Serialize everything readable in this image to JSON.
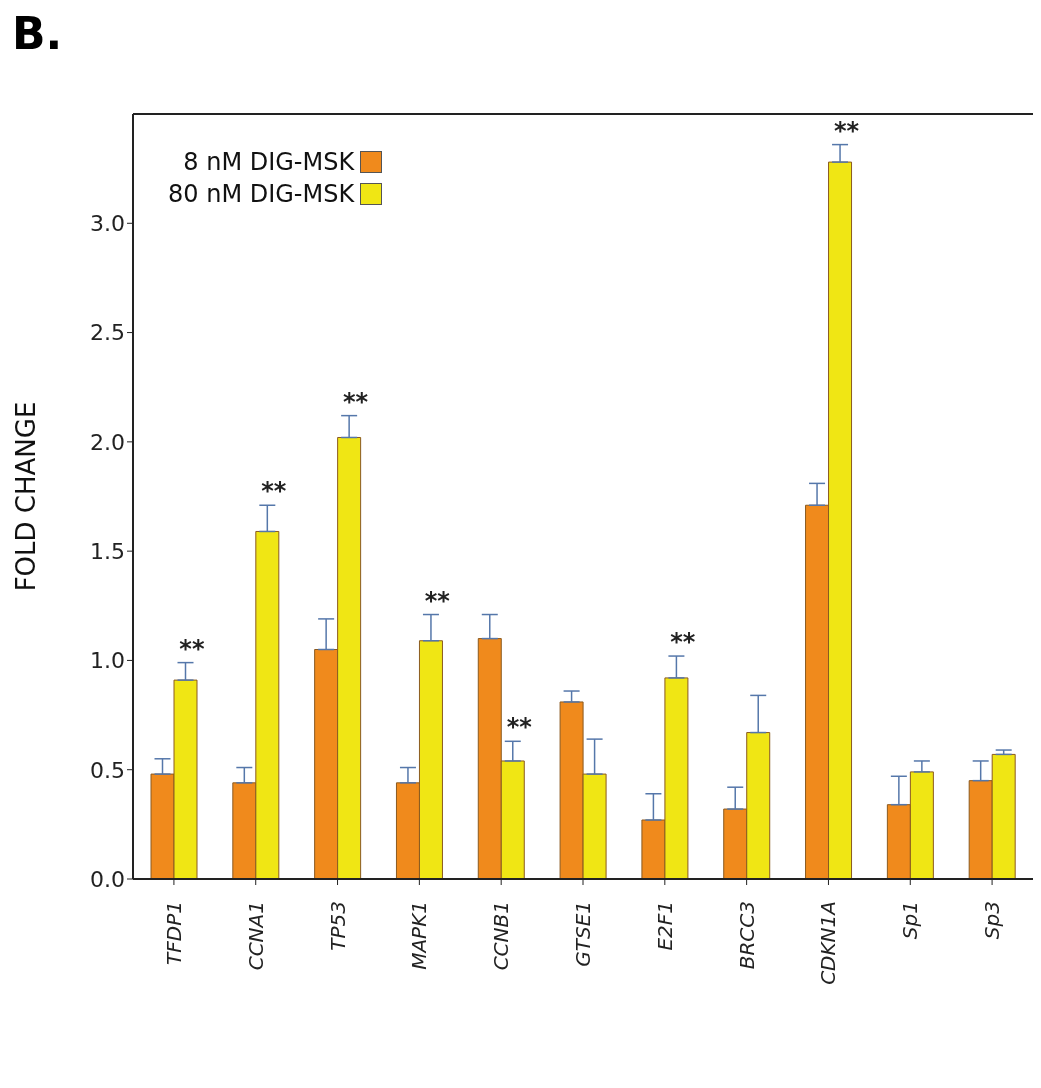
{
  "chart_data": {
    "type": "bar",
    "title": "B.",
    "ylabel": "FOLD CHANGE",
    "categories": [
      "TFDP1",
      "CCNA1",
      "TP53",
      "MAPK1",
      "CCNB1",
      "GTSE1",
      "E2F1",
      "BRCC3",
      "CDKN1A",
      "Sp1",
      "Sp3"
    ],
    "series": [
      {
        "name": "8 nM DIG-MSK",
        "color": "#f08a1c",
        "values": [
          0.48,
          0.44,
          1.05,
          0.44,
          1.1,
          0.81,
          0.27,
          0.32,
          1.71,
          0.34,
          0.45
        ],
        "errors": [
          [
            0.48,
            0.55
          ],
          [
            0.44,
            0.51
          ],
          [
            1.05,
            1.19
          ],
          [
            0.44,
            0.51
          ],
          [
            1.1,
            1.21
          ],
          [
            0.81,
            0.86
          ],
          [
            0.27,
            0.39
          ],
          [
            0.32,
            0.42
          ],
          [
            1.71,
            1.81
          ],
          [
            0.34,
            0.47
          ],
          [
            0.45,
            0.54
          ]
        ]
      },
      {
        "name": "80 nM DIG-MSK",
        "color": "#f0e614",
        "values": [
          0.91,
          1.59,
          2.02,
          1.09,
          0.54,
          0.48,
          0.92,
          0.67,
          3.28,
          0.49,
          0.57
        ],
        "errors": [
          [
            0.91,
            0.99
          ],
          [
            1.59,
            1.71
          ],
          [
            2.02,
            2.12
          ],
          [
            1.09,
            1.21
          ],
          [
            0.54,
            0.63
          ],
          [
            0.48,
            0.64
          ],
          [
            0.92,
            1.02
          ],
          [
            0.67,
            0.84
          ],
          [
            3.28,
            3.36
          ],
          [
            0.49,
            0.54
          ],
          [
            0.57,
            0.59
          ]
        ]
      }
    ],
    "ylim": [
      0,
      3.5
    ],
    "yticks": [
      {
        "value": 0,
        "label": "0.0"
      },
      {
        "value": 0.5,
        "label": "0.5"
      },
      {
        "value": 1,
        "label": "1.0"
      },
      {
        "value": 1.5,
        "label": "1.5"
      },
      {
        "value": 2,
        "label": "2.0"
      },
      {
        "value": 2.5,
        "label": "2.5"
      },
      {
        "value": 3,
        "label": "3.0"
      }
    ],
    "legend": "top left",
    "grid": false,
    "annotations": [
      {
        "text": "**",
        "x": "TFDP1",
        "y": 0.91
      },
      {
        "text": "**",
        "x": "CCNA1",
        "y": 1.59
      },
      {
        "text": "**",
        "x": "TP53",
        "y": 2.02
      },
      {
        "text": "**",
        "x": "MAPK1",
        "y": 1.09
      },
      {
        "text": "**",
        "x": "CCNB1",
        "y": 0.54
      },
      {
        "text": "**",
        "x": "E2F1",
        "y": 0.92
      },
      {
        "text": "**",
        "x": "CDKN1A",
        "y": 3.28
      }
    ]
  }
}
